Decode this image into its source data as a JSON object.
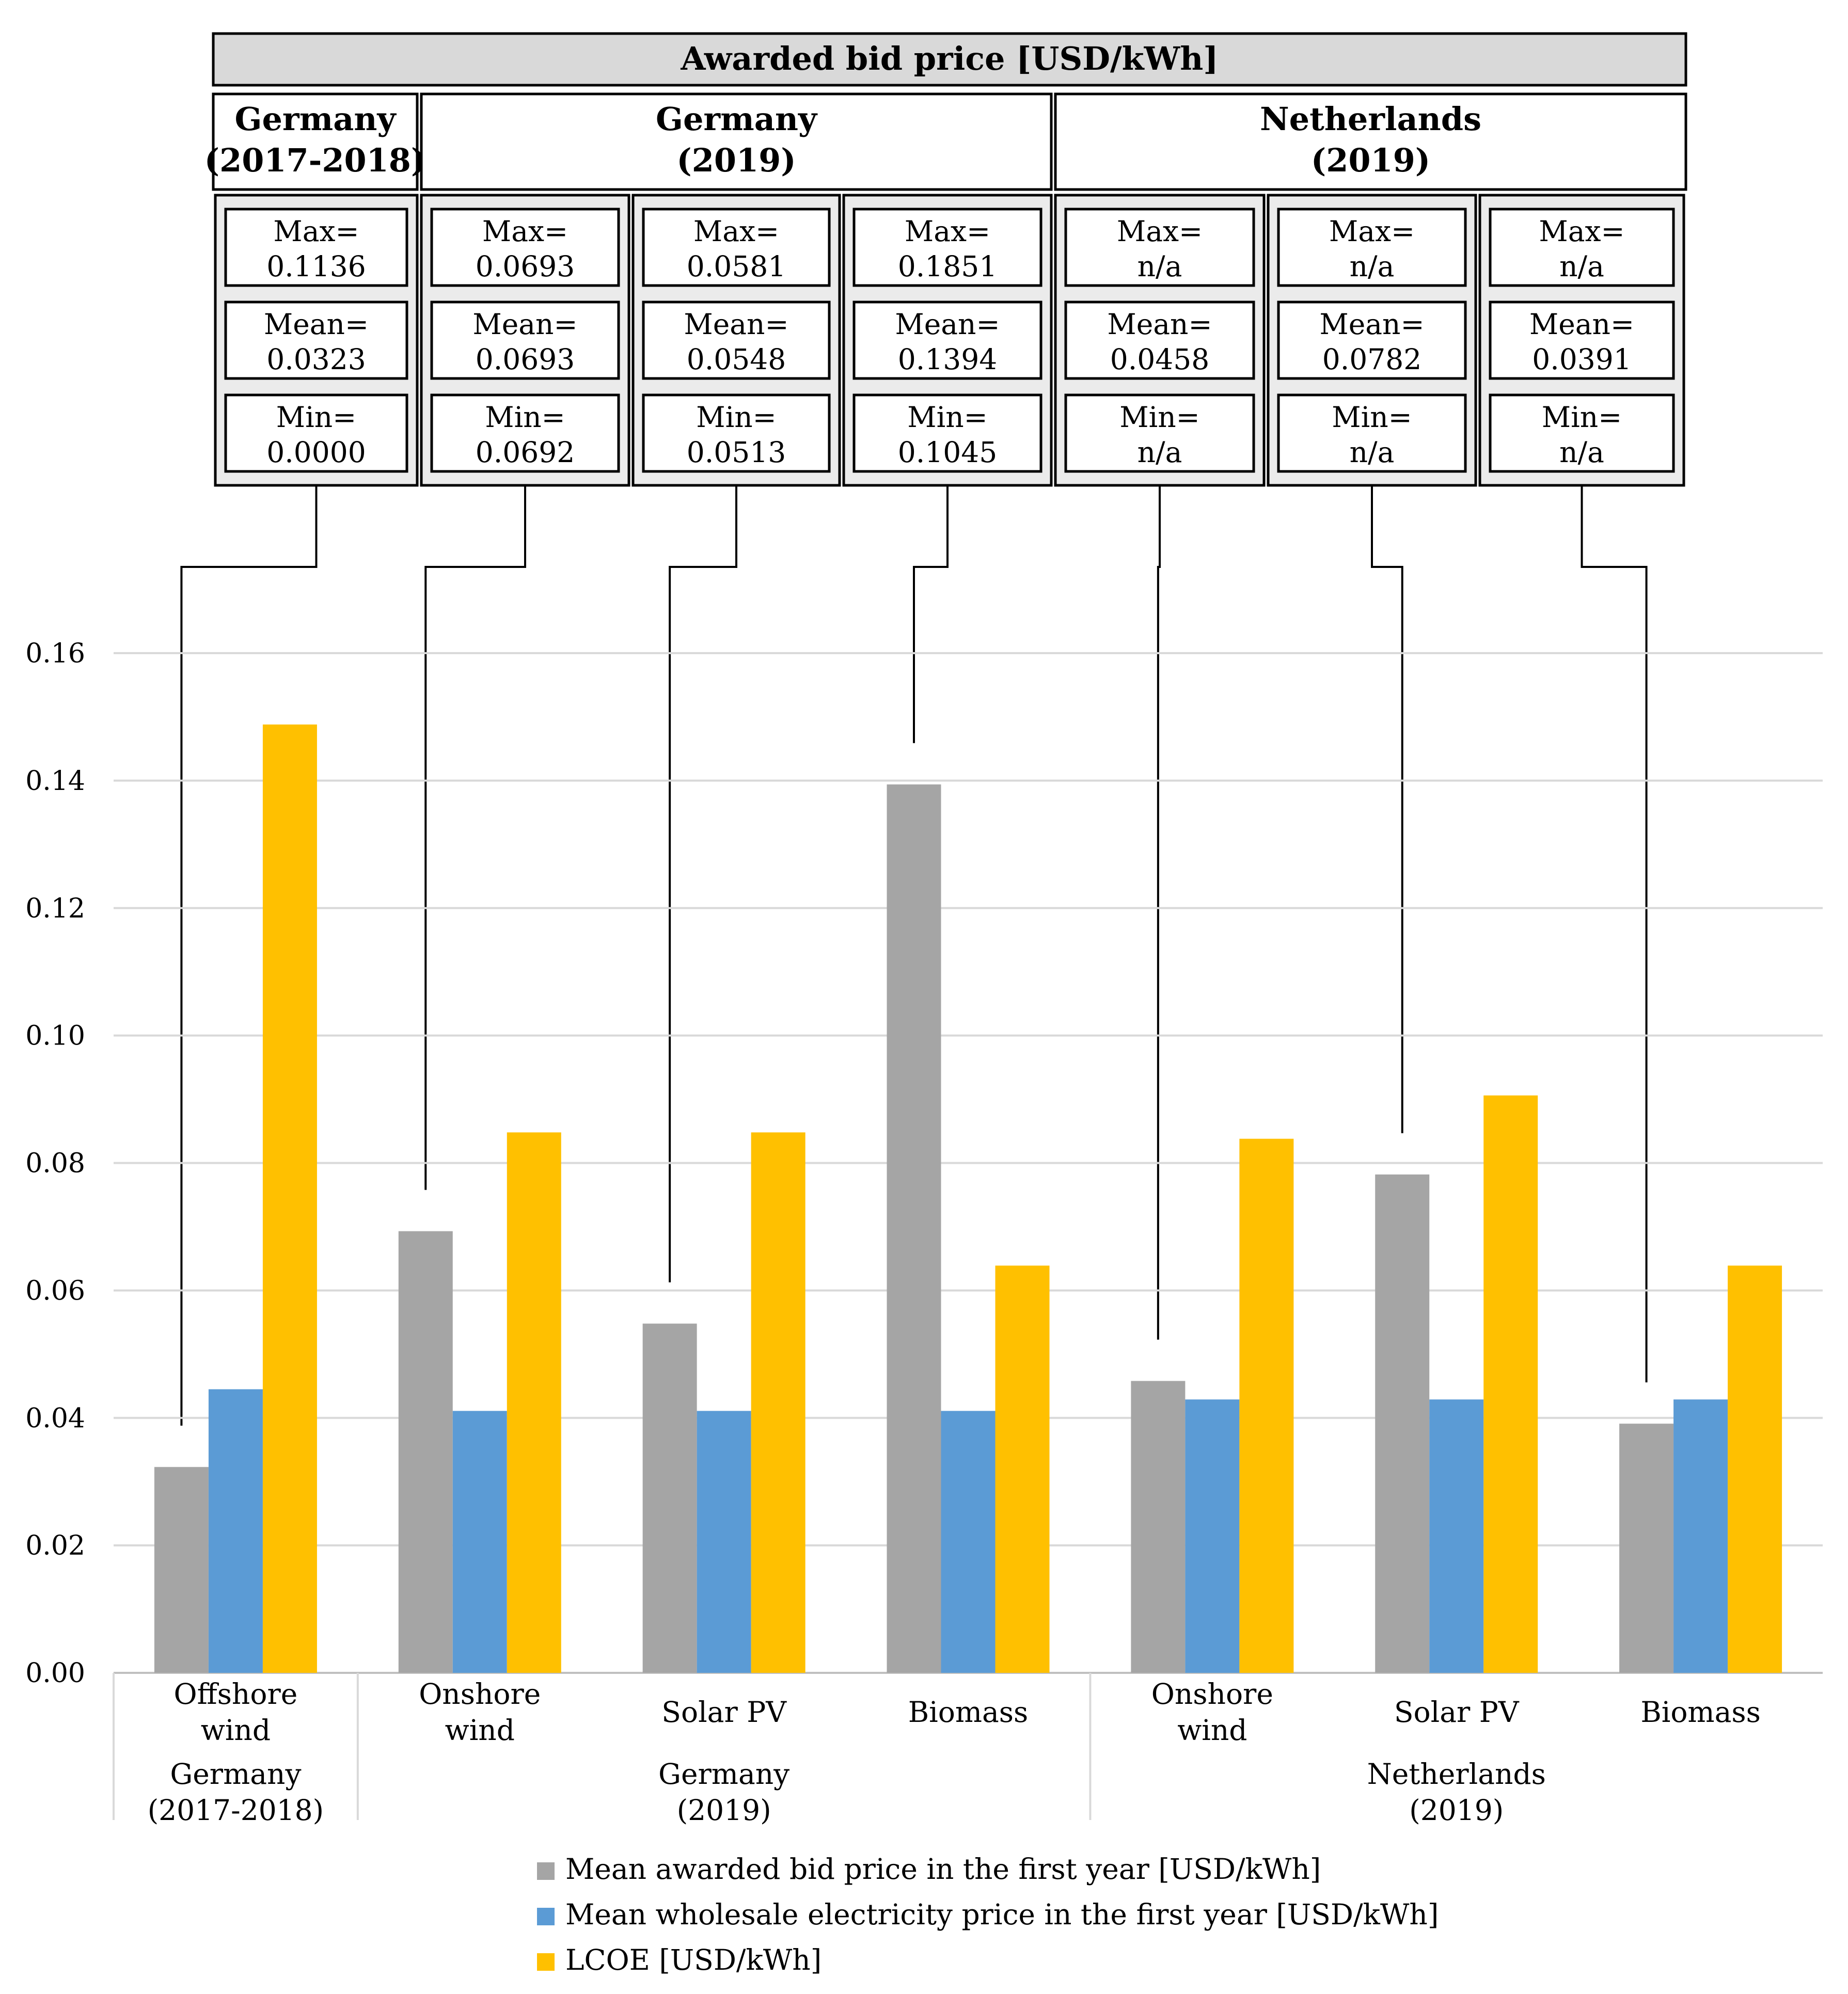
{
  "chart_data": {
    "type": "bar",
    "ylim": [
      0,
      0.16
    ],
    "yticks": [
      "0.00",
      "0.02",
      "0.04",
      "0.06",
      "0.08",
      "0.10",
      "0.12",
      "0.14",
      "0.16"
    ],
    "grid": true,
    "legend_position": "bottom",
    "table_title": "Awarded bid price [USD/kWh]",
    "groups": [
      {
        "label_line1": "Germany",
        "label_line2": "(2017-2018)",
        "start": 0,
        "count": 1
      },
      {
        "label_line1": "Germany",
        "label_line2": "(2019)",
        "start": 1,
        "count": 3
      },
      {
        "label_line1": "Netherlands",
        "label_line2": "(2019)",
        "start": 4,
        "count": 3
      }
    ],
    "categories": [
      {
        "line1": "Offshore",
        "line2": "wind"
      },
      {
        "line1": "Onshore",
        "line2": "wind"
      },
      {
        "line1": "Solar PV",
        "line2": ""
      },
      {
        "line1": "Biomass",
        "line2": ""
      },
      {
        "line1": "Onshore",
        "line2": "wind"
      },
      {
        "line1": "Solar PV",
        "line2": ""
      },
      {
        "line1": "Biomass",
        "line2": ""
      }
    ],
    "series": [
      {
        "name": "Mean awarded bid price in the first year [USD/kWh]",
        "color": "#A5A5A5",
        "values": [
          0.0323,
          0.0693,
          0.0548,
          0.1394,
          0.0458,
          0.0782,
          0.0391
        ]
      },
      {
        "name": "Mean wholesale electricity price in the first year [USD/kWh]",
        "color": "#5B9BD5",
        "values": [
          0.0445,
          0.0411,
          0.0411,
          0.0411,
          0.0429,
          0.0429,
          0.0429
        ]
      },
      {
        "name": "LCOE [USD/kWh]",
        "color": "#FFC000",
        "values": [
          0.1488,
          0.0848,
          0.0848,
          0.0639,
          0.0838,
          0.0906,
          0.0639
        ]
      }
    ],
    "stats": [
      {
        "max_label": "Max=",
        "max": "0.1136",
        "mean_label": "Mean=",
        "mean": "0.0323",
        "min_label": "Min=",
        "min": "0.0000"
      },
      {
        "max_label": "Max=",
        "max": "0.0693",
        "mean_label": "Mean=",
        "mean": "0.0693",
        "min_label": "Min=",
        "min": "0.0692"
      },
      {
        "max_label": "Max=",
        "max": "0.0581",
        "mean_label": "Mean=",
        "mean": "0.0548",
        "min_label": "Min=",
        "min": "0.0513"
      },
      {
        "max_label": "Max=",
        "max": "0.1851",
        "mean_label": "Mean=",
        "mean": "0.1394",
        "min_label": "Min=",
        "min": "0.1045"
      },
      {
        "max_label": "Max=",
        "max": "n/a",
        "mean_label": "Mean=",
        "mean": "0.0458",
        "min_label": "Min=",
        "min": "n/a"
      },
      {
        "max_label": "Max=",
        "max": "n/a",
        "mean_label": "Mean=",
        "mean": "0.0782",
        "min_label": "Min=",
        "min": "n/a"
      },
      {
        "max_label": "Max=",
        "max": "n/a",
        "mean_label": "Mean=",
        "mean": "0.0391",
        "min_label": "Min=",
        "min": "n/a"
      }
    ]
  }
}
